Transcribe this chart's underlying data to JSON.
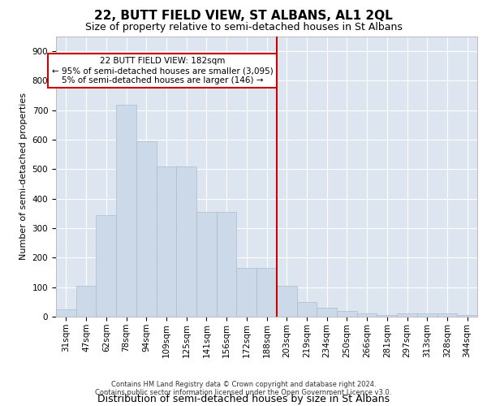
{
  "title": "22, BUTT FIELD VIEW, ST ALBANS, AL1 2QL",
  "subtitle": "Size of property relative to semi-detached houses in St Albans",
  "xlabel": "Distribution of semi-detached houses by size in St Albans",
  "ylabel": "Number of semi-detached properties",
  "footer_line1": "Contains HM Land Registry data © Crown copyright and database right 2024.",
  "footer_line2": "Contains public sector information licensed under the Open Government Licence v3.0.",
  "categories": [
    "31sqm",
    "47sqm",
    "62sqm",
    "78sqm",
    "94sqm",
    "109sqm",
    "125sqm",
    "141sqm",
    "156sqm",
    "172sqm",
    "188sqm",
    "203sqm",
    "219sqm",
    "234sqm",
    "250sqm",
    "266sqm",
    "281sqm",
    "297sqm",
    "313sqm",
    "328sqm",
    "344sqm"
  ],
  "values": [
    25,
    105,
    345,
    720,
    595,
    510,
    510,
    355,
    355,
    165,
    165,
    105,
    50,
    30,
    20,
    10,
    5,
    10,
    10,
    10,
    5
  ],
  "annotation_line1": "22 BUTT FIELD VIEW: 182sqm",
  "annotation_line2": "← 95% of semi-detached houses are smaller (3,095)",
  "annotation_line3": "5% of semi-detached houses are larger (146) →",
  "vline_position": 10.5,
  "bar_color": "#ccd9e8",
  "bar_edge_color": "#aabcce",
  "vline_color": "#cc0000",
  "annotation_box_edge_color": "#cc0000",
  "plot_background": "#dde6f0",
  "ylim": [
    0,
    950
  ],
  "yticks": [
    0,
    100,
    200,
    300,
    400,
    500,
    600,
    700,
    800,
    900
  ],
  "title_fontsize": 11,
  "subtitle_fontsize": 9,
  "xlabel_fontsize": 9,
  "ylabel_fontsize": 8,
  "tick_fontsize": 7.5,
  "annotation_fontsize": 7.5,
  "footer_fontsize": 6
}
